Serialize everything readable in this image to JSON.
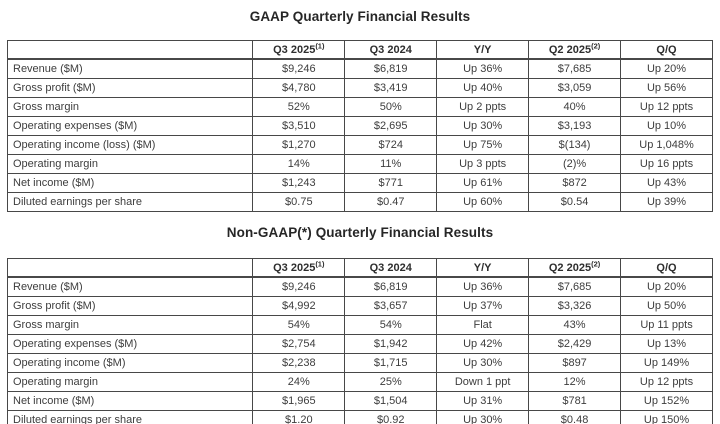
{
  "colors": {
    "background": "#ffffff",
    "border": "#484848",
    "text": "#3d3d3d",
    "title": "#262626"
  },
  "tables": [
    {
      "title": "GAAP Quarterly Financial Results",
      "columns": [
        {
          "label": "",
          "sup": ""
        },
        {
          "label": "Q3 2025",
          "sup": "(1)"
        },
        {
          "label": "Q3 2024",
          "sup": ""
        },
        {
          "label": "Y/Y",
          "sup": ""
        },
        {
          "label": "Q2 2025",
          "sup": "(2)"
        },
        {
          "label": "Q/Q",
          "sup": ""
        }
      ],
      "rows": [
        [
          "Revenue ($M)",
          "$9,246",
          "$6,819",
          "Up 36%",
          "$7,685",
          "Up 20%"
        ],
        [
          "Gross profit ($M)",
          "$4,780",
          "$3,419",
          "Up 40%",
          "$3,059",
          "Up 56%"
        ],
        [
          "Gross margin",
          "52%",
          "50%",
          "Up 2 ppts",
          "40%",
          "Up 12 ppts"
        ],
        [
          "Operating expenses ($M)",
          "$3,510",
          "$2,695",
          "Up 30%",
          "$3,193",
          "Up 10%"
        ],
        [
          "Operating income (loss) ($M)",
          "$1,270",
          "$724",
          "Up 75%",
          "$(134)",
          "Up 1,048%"
        ],
        [
          "Operating margin",
          "14%",
          "11%",
          "Up 3 ppts",
          "(2)%",
          "Up 16 ppts"
        ],
        [
          "Net income ($M)",
          "$1,243",
          "$771",
          "Up 61%",
          "$872",
          "Up 43%"
        ],
        [
          "Diluted earnings per share",
          "$0.75",
          "$0.47",
          "Up 60%",
          "$0.54",
          "Up 39%"
        ]
      ]
    },
    {
      "title": "Non-GAAP(*) Quarterly Financial Results",
      "columns": [
        {
          "label": "",
          "sup": ""
        },
        {
          "label": "Q3 2025",
          "sup": "(1)"
        },
        {
          "label": "Q3 2024",
          "sup": ""
        },
        {
          "label": "Y/Y",
          "sup": ""
        },
        {
          "label": "Q2 2025",
          "sup": "(2)"
        },
        {
          "label": "Q/Q",
          "sup": ""
        }
      ],
      "rows": [
        [
          "Revenue ($M)",
          "$9,246",
          "$6,819",
          "Up 36%",
          "$7,685",
          "Up 20%"
        ],
        [
          "Gross profit ($M)",
          "$4,992",
          "$3,657",
          "Up 37%",
          "$3,326",
          "Up 50%"
        ],
        [
          "Gross margin",
          "54%",
          "54%",
          "Flat",
          "43%",
          "Up 11 ppts"
        ],
        [
          "Operating expenses ($M)",
          "$2,754",
          "$1,942",
          "Up 42%",
          "$2,429",
          "Up 13%"
        ],
        [
          "Operating income ($M)",
          "$2,238",
          "$1,715",
          "Up 30%",
          "$897",
          "Up 149%"
        ],
        [
          "Operating margin",
          "24%",
          "25%",
          "Down 1 ppt",
          "12%",
          "Up 12 ppts"
        ],
        [
          "Net income ($M)",
          "$1,965",
          "$1,504",
          "Up 31%",
          "$781",
          "Up 152%"
        ],
        [
          "Diluted earnings per share",
          "$1.20",
          "$0.92",
          "Up 30%",
          "$0.48",
          "Up 150%"
        ]
      ]
    }
  ]
}
